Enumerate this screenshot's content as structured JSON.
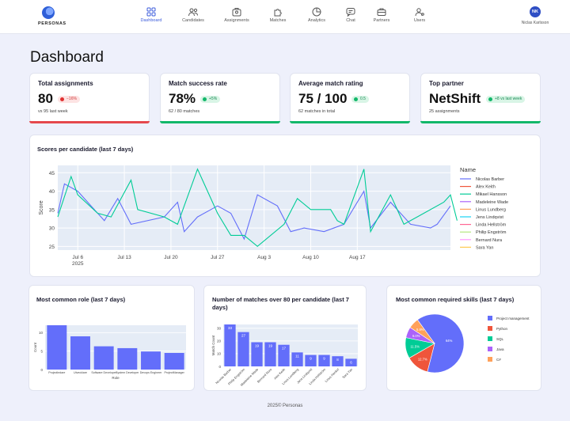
{
  "app": {
    "logo_text": "PERSONAS"
  },
  "nav": [
    {
      "label": "Dashboard",
      "icon": "grid-icon",
      "active": true
    },
    {
      "label": "Candidates",
      "icon": "people-icon",
      "active": false
    },
    {
      "label": "Assignments",
      "icon": "briefcase-person-icon",
      "active": false
    },
    {
      "label": "Matches",
      "icon": "puzzle-icon",
      "active": false
    },
    {
      "label": "Analytics",
      "icon": "chart-pie-icon",
      "active": false
    },
    {
      "label": "Chat",
      "icon": "chat-icon",
      "active": false
    },
    {
      "label": "Partners",
      "icon": "briefcase-icon",
      "active": false
    },
    {
      "label": "Users",
      "icon": "gear-user-icon",
      "active": false
    }
  ],
  "user": {
    "initials": "NK",
    "name": "Niclas Karlsson"
  },
  "page_title": "Dashboard",
  "kpis": [
    {
      "title": "Total assignments",
      "value": "80",
      "badge": "−16%",
      "badge_type": "red",
      "sub": "vs 95 last week",
      "stripe_color": "#e5484d"
    },
    {
      "title": "Match success rate",
      "value": "78%",
      "badge": "+5%",
      "badge_type": "green",
      "sub": "62 / 80 matches",
      "stripe_color": "#12b76a"
    },
    {
      "title": "Average match rating",
      "value": "75 / 100",
      "badge": "0.5",
      "badge_type": "green",
      "sub": "62 matches in total",
      "stripe_color": "#12b76a"
    },
    {
      "title": "Top partner",
      "value": "NetShift",
      "badge": "+8 vs last week",
      "badge_type": "green",
      "sub": "25 assignments",
      "stripe_color": "#12b76a"
    }
  ],
  "line_chart": {
    "title": "Scores per candidate  (last 7 days)",
    "chart_data": {
      "type": "line",
      "ylabel": "Score",
      "ylim": [
        24,
        47
      ],
      "y_ticks": [
        25,
        30,
        35,
        40,
        45
      ],
      "x_ticks": [
        "Jul 6",
        "Jul 13",
        "Jul 20",
        "Jul 27",
        "Aug 3",
        "Aug 10",
        "Aug 17"
      ],
      "x_tick_sub": [
        "2025",
        "",
        "",
        "",
        "",
        "",
        ""
      ],
      "x_range_days": [
        -3,
        56
      ],
      "legend_title": "Name",
      "legend_position": "right",
      "series": [
        {
          "name": "Nicolas Barber",
          "color": "#636efa",
          "points": [
            [
              -3,
              34
            ],
            [
              -2,
              42
            ],
            [
              0,
              40
            ],
            [
              2,
              36
            ],
            [
              4,
              32
            ],
            [
              6,
              38
            ],
            [
              8,
              31
            ],
            [
              13,
              33
            ],
            [
              15,
              37
            ],
            [
              16,
              29
            ],
            [
              18,
              33
            ],
            [
              21,
              36
            ],
            [
              23,
              34
            ],
            [
              25,
              27
            ],
            [
              27,
              39
            ],
            [
              30,
              36
            ],
            [
              32,
              29
            ],
            [
              34,
              30
            ],
            [
              37,
              29
            ],
            [
              40,
              31
            ],
            [
              43,
              40
            ],
            [
              44,
              30
            ],
            [
              47,
              37
            ],
            [
              50,
              31
            ],
            [
              53,
              30
            ],
            [
              54,
              31
            ],
            [
              56,
              36
            ]
          ]
        },
        {
          "name": "Mikael Hansson",
          "color": "#00cc96",
          "points": [
            [
              -3,
              33
            ],
            [
              -1,
              44
            ],
            [
              0,
              39
            ],
            [
              3,
              34
            ],
            [
              5,
              33
            ],
            [
              8,
              43
            ],
            [
              9,
              35
            ],
            [
              13,
              33
            ],
            [
              15,
              31
            ],
            [
              18,
              46
            ],
            [
              21,
              34
            ],
            [
              23,
              28
            ],
            [
              25,
              28
            ],
            [
              27,
              25
            ],
            [
              31,
              31
            ],
            [
              33,
              38
            ],
            [
              35,
              35
            ],
            [
              38,
              35
            ],
            [
              39,
              32
            ],
            [
              40,
              31
            ],
            [
              43,
              46
            ],
            [
              44,
              29
            ],
            [
              47,
              39
            ],
            [
              49,
              31
            ],
            [
              51,
              33
            ],
            [
              55,
              37
            ],
            [
              56,
              39
            ],
            [
              57,
              32
            ]
          ]
        }
      ],
      "legend": [
        {
          "name": "Nicolas Barber",
          "color": "#636efa"
        },
        {
          "name": "Alex Keith",
          "color": "#ef553b"
        },
        {
          "name": "Mikael Hansson",
          "color": "#00cc96"
        },
        {
          "name": "Madeleine Wade",
          "color": "#ab63fa"
        },
        {
          "name": "Linus Lundberg",
          "color": "#ffa15a"
        },
        {
          "name": "Jens Lindqvist",
          "color": "#19d3f3"
        },
        {
          "name": "Linda Hellström",
          "color": "#ff6692"
        },
        {
          "name": "Philip Engström",
          "color": "#b6e880"
        },
        {
          "name": "Bernard Nura",
          "color": "#ff97ff"
        },
        {
          "name": "Sara Yan",
          "color": "#fecb52"
        }
      ]
    }
  },
  "role_chart": {
    "title": "Most common role (last 7 days)",
    "chart_data": {
      "type": "bar",
      "xlabel": "Role",
      "ylabel": "Count",
      "ylim": [
        0,
        12
      ],
      "y_ticks": [
        0,
        5,
        10
      ],
      "categories": [
        "Projectledare",
        "Utvecklare",
        "Software Developer",
        "System Developer",
        "Devops Engineer",
        "ProjectManager"
      ],
      "values": [
        12,
        9,
        6.3,
        5.8,
        4.9,
        4.5
      ],
      "color": "#636efa"
    }
  },
  "matches_chart": {
    "title": "Number of matches over 80 per candidate (last 7 days)",
    "chart_data": {
      "type": "bar",
      "ylabel": "Match Count",
      "ylim": [
        0,
        33
      ],
      "y_ticks": [
        0,
        10,
        20,
        30
      ],
      "categories": [
        "Nicolas Barber",
        "Philip Engström",
        "Madeleine Wade",
        "Bernard Nura",
        "Alex Keith",
        "Linus Lundberg",
        "Jens Lindqvist",
        "Linda Hellström",
        "Linus Henkel",
        "Sara Yan"
      ],
      "values": [
        33,
        27,
        19,
        19,
        17,
        11,
        9,
        9,
        8,
        6
      ],
      "data_labels": [
        "33",
        "27",
        "19",
        "19",
        "17",
        "11",
        "9",
        "9",
        "8",
        "6"
      ],
      "color": "#636efa"
    }
  },
  "skills_chart": {
    "title": "Most common required skills  (last 7 days)",
    "chart_data": {
      "type": "pie",
      "legend_position": "right",
      "slices": [
        {
          "label": "Project management",
          "value": 64,
          "text": "64%",
          "color": "#636efa"
        },
        {
          "label": "Python",
          "value": 12.7,
          "text": "12.7%",
          "color": "#ef553b"
        },
        {
          "label": "SQL",
          "value": 11.5,
          "text": "11.5%",
          "color": "#00cc96"
        },
        {
          "label": "Java",
          "value": 6.0,
          "text": "6.0%",
          "color": "#ab63fa"
        },
        {
          "label": "C#",
          "value": 5.8,
          "text": "5.8%",
          "color": "#ffa15a"
        }
      ]
    }
  },
  "footer": "2025© Personas"
}
